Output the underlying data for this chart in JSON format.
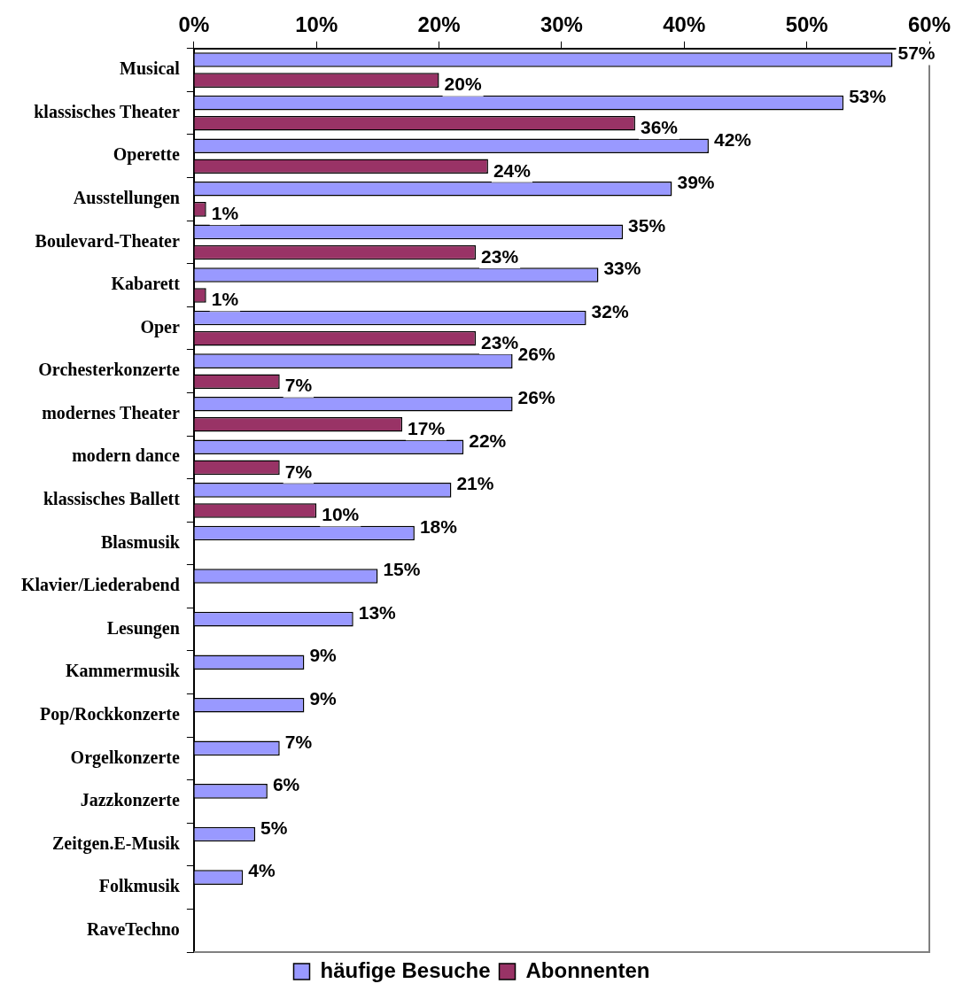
{
  "chart_data": {
    "type": "bar",
    "orientation": "horizontal",
    "categories": [
      "Musical",
      "klassisches Theater",
      "Operette",
      "Ausstellungen",
      "Boulevard-Theater",
      "Kabarett",
      "Oper",
      "Orchesterkonzerte",
      "modernes Theater",
      "modern dance",
      "klassisches Ballett",
      "Blasmusik",
      "Klavier/Liederabend",
      "Lesungen",
      "Kammermusik",
      "Pop/Rockkonzerte",
      "Orgelkonzerte",
      "Jazzkonzerte",
      "Zeitgen.E-Musik",
      "Folkmusik",
      "RaveTechno"
    ],
    "series": [
      {
        "name": "häufige Besuche",
        "color": "#9999ff",
        "values": [
          57,
          53,
          42,
          39,
          35,
          33,
          32,
          26,
          26,
          22,
          21,
          18,
          15,
          13,
          9,
          9,
          7,
          6,
          5,
          4,
          null
        ],
        "value_labels": [
          "57%",
          "53%",
          "42%",
          "39%",
          "35%",
          "33%",
          "32%",
          "26%",
          "26%",
          "22%",
          "21%",
          "18%",
          "15%",
          "13%",
          "9%",
          "9%",
          "7%",
          "6%",
          "5%",
          "4%",
          null
        ]
      },
      {
        "name": "Abonnenten",
        "color": "#993366",
        "values": [
          20,
          36,
          24,
          1,
          23,
          1,
          23,
          7,
          17,
          7,
          10,
          null,
          null,
          null,
          null,
          null,
          null,
          null,
          null,
          null,
          null
        ],
        "value_labels": [
          "20%",
          "36%",
          "24%",
          "1%",
          "23%",
          "1%",
          "23%",
          "7%",
          "17%",
          "7%",
          "10%",
          null,
          null,
          null,
          null,
          null,
          null,
          null,
          null,
          null,
          null
        ]
      }
    ],
    "xlim": [
      0,
      60
    ],
    "xticks": [
      {
        "value": 0,
        "label": "0%"
      },
      {
        "value": 10,
        "label": "10%"
      },
      {
        "value": 20,
        "label": "20%"
      },
      {
        "value": 30,
        "label": "30%"
      },
      {
        "value": 40,
        "label": "40%"
      },
      {
        "value": 50,
        "label": "50%"
      },
      {
        "value": 60,
        "label": "60%"
      }
    ],
    "grid": false,
    "legend": "bottom"
  }
}
